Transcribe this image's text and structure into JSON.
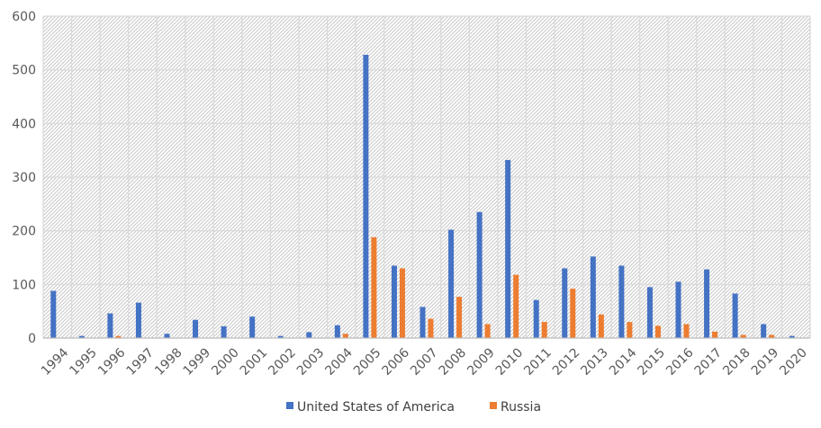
{
  "chart_data": {
    "type": "bar",
    "title": "",
    "xlabel": "",
    "ylabel": "",
    "ylim": [
      0,
      600
    ],
    "yticks": [
      "0",
      "100",
      "200",
      "300",
      "400",
      "500",
      "600"
    ],
    "grid": true,
    "legend_position": "bottom",
    "categories": [
      "1994",
      "1995",
      "1996",
      "1997",
      "1998",
      "1999",
      "2000",
      "2001",
      "2002",
      "2003",
      "2004",
      "2005",
      "2006",
      "2007",
      "2008",
      "2009",
      "2010",
      "2011",
      "2012",
      "2013",
      "2014",
      "2015",
      "2016",
      "2017",
      "2018",
      "2019",
      "2020"
    ],
    "series": [
      {
        "name": "United States of America",
        "color": "#4472C4",
        "values": [
          88,
          4,
          46,
          66,
          8,
          34,
          22,
          40,
          4,
          11,
          24,
          528,
          135,
          58,
          202,
          235,
          332,
          71,
          130,
          152,
          135,
          95,
          105,
          128,
          83,
          26,
          4
        ]
      },
      {
        "name": "Russia",
        "color": "#ED7D31",
        "values": [
          0,
          0,
          4,
          0,
          0,
          0,
          0,
          0,
          0,
          0,
          8,
          188,
          130,
          36,
          77,
          26,
          118,
          30,
          92,
          44,
          30,
          23,
          26,
          12,
          6,
          6,
          0
        ]
      }
    ]
  }
}
